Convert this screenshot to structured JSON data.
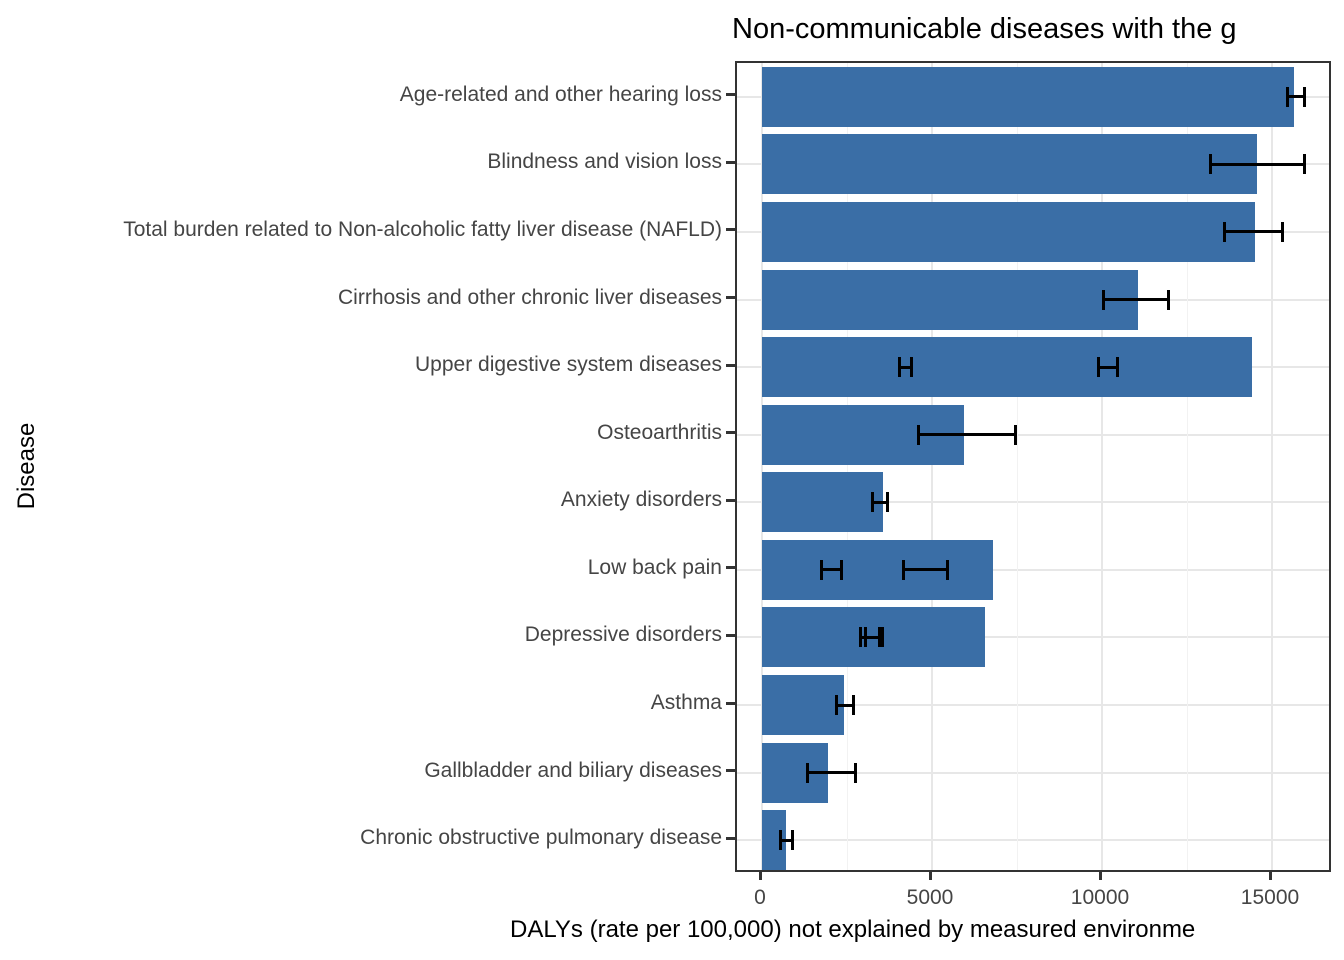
{
  "chart_data": {
    "type": "bar",
    "orientation": "horizontal",
    "title": "Non-communicable diseases with the g",
    "xlabel": "DALYs (rate per 100,000) not explained by measured environme",
    "ylabel": "Disease",
    "x_ticks": [
      0,
      5000,
      10000,
      15000
    ],
    "x_tick_labels": [
      "0",
      "5000",
      "10000",
      "15000"
    ],
    "x_minor_ticks": [
      2500,
      7500,
      12500
    ],
    "xlim": [
      -735,
      16800
    ],
    "grid": true,
    "legend": false,
    "bar_color": "#3A6EA6",
    "series": [
      {
        "category": "Age-related and other hearing loss",
        "value": 15650,
        "error_bars": [
          [
            15450,
            15950
          ]
        ]
      },
      {
        "category": "Blindness and vision loss",
        "value": 14550,
        "error_bars": [
          [
            13200,
            15950
          ]
        ]
      },
      {
        "category": "Total burden related to Non-alcoholic fatty liver disease (NAFLD)",
        "value": 14500,
        "error_bars": [
          [
            13600,
            15300
          ]
        ]
      },
      {
        "category": "Cirrhosis and other chronic liver diseases",
        "value": 11050,
        "error_bars": [
          [
            10050,
            11950
          ]
        ]
      },
      {
        "category": "Upper digestive system diseases",
        "value": 14400,
        "error_bars": [
          [
            4050,
            4400
          ],
          [
            9900,
            10450
          ]
        ]
      },
      {
        "category": "Osteoarthritis",
        "value": 5950,
        "error_bars": [
          [
            4600,
            7450
          ]
        ]
      },
      {
        "category": "Anxiety disorders",
        "value": 3550,
        "error_bars": [
          [
            3250,
            3700
          ]
        ]
      },
      {
        "category": "Low back pain",
        "value": 6800,
        "error_bars": [
          [
            1750,
            2350
          ],
          [
            4150,
            5450
          ]
        ]
      },
      {
        "category": "Depressive disorders",
        "value": 6550,
        "error_bars": [
          [
            2900,
            3450
          ],
          [
            3050,
            3550
          ]
        ]
      },
      {
        "category": "Asthma",
        "value": 2400,
        "error_bars": [
          [
            2200,
            2700
          ]
        ]
      },
      {
        "category": "Gallbladder and biliary diseases",
        "value": 1950,
        "error_bars": [
          [
            1350,
            2750
          ]
        ]
      },
      {
        "category": "Chronic obstructive pulmonary disease",
        "value": 700,
        "error_bars": [
          [
            550,
            900
          ]
        ]
      }
    ]
  },
  "colors": {
    "bar": "#3A6EA6",
    "error_bar": "#000000",
    "panel_border": "#333333",
    "grid_major": "#E7E7E7",
    "grid_minor": "#F2F2F2",
    "axis_text": "#454545",
    "title_text": "#000000"
  }
}
